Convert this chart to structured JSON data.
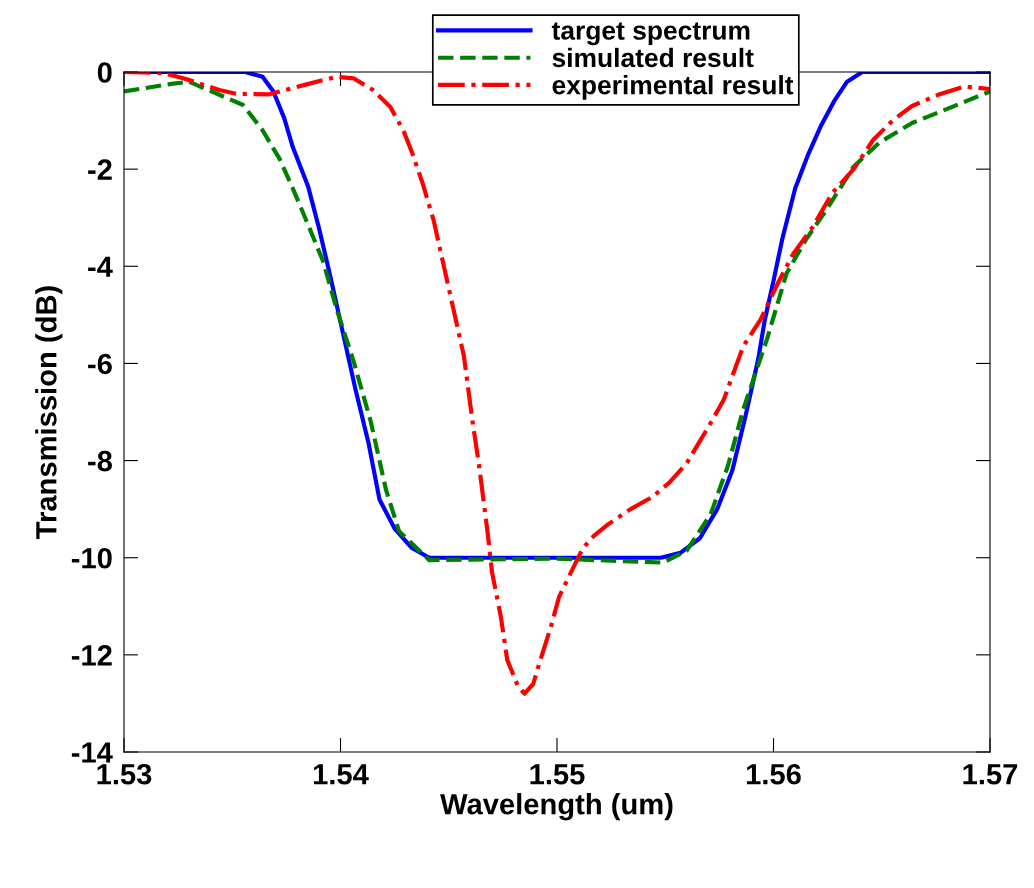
{
  "chart_data": {
    "type": "line",
    "xlabel": "Wavelength (um)",
    "ylabel": "Transmission (dB)",
    "xlim": [
      1.53,
      1.57
    ],
    "xticks": [
      1.53,
      1.54,
      1.55,
      1.56,
      1.57
    ],
    "ylim": [
      -14,
      0
    ],
    "yticks": [
      -14,
      -12,
      -10,
      -8,
      -6,
      -4,
      -2,
      0
    ],
    "grid": false,
    "legend": "top right",
    "marker": "none",
    "series": [
      {
        "name": "target spectrum",
        "color": "#0000ff",
        "line_style": "solid",
        "x": [
          1.53,
          1.5356,
          1.5364,
          1.5369,
          1.5374,
          1.5378,
          1.5385,
          1.539,
          1.5395,
          1.5401,
          1.5407,
          1.5413,
          1.5418,
          1.5425,
          1.5433,
          1.5441,
          1.5548,
          1.5557,
          1.5566,
          1.5574,
          1.5581,
          1.5587,
          1.5593,
          1.5596,
          1.56,
          1.5604,
          1.561,
          1.5616,
          1.5622,
          1.5628,
          1.5634,
          1.5641,
          1.57
        ],
        "values": [
          0,
          0,
          -0.1,
          -0.4,
          -0.95,
          -1.55,
          -2.35,
          -3.2,
          -4.15,
          -5.35,
          -6.55,
          -7.65,
          -8.8,
          -9.4,
          -9.8,
          -10,
          -10,
          -9.9,
          -9.6,
          -9.0,
          -8.2,
          -7.1,
          -5.9,
          -5.1,
          -4.3,
          -3.45,
          -2.4,
          -1.7,
          -1.1,
          -0.6,
          -0.2,
          0,
          0
        ]
      },
      {
        "name": "simulated result",
        "color": "#008000",
        "line_style": "dashed",
        "x": [
          1.53,
          1.5321,
          1.533,
          1.5355,
          1.5364,
          1.5372,
          1.5378,
          1.5386,
          1.5392,
          1.5398,
          1.5406,
          1.5414,
          1.5421,
          1.5427,
          1.5441,
          1.55,
          1.5549,
          1.556,
          1.5571,
          1.5579,
          1.5586,
          1.5597,
          1.5606,
          1.5615,
          1.5625,
          1.5637,
          1.5649,
          1.5664,
          1.5678,
          1.5689,
          1.57
        ],
        "values": [
          -0.4,
          -0.25,
          -0.2,
          -0.68,
          -1.2,
          -1.8,
          -2.4,
          -3.25,
          -3.9,
          -4.85,
          -5.95,
          -7.2,
          -8.6,
          -9.45,
          -10.05,
          -10.02,
          -10.1,
          -9.85,
          -9.1,
          -8.1,
          -6.95,
          -5.5,
          -4.15,
          -3.45,
          -2.8,
          -1.95,
          -1.45,
          -1.05,
          -0.8,
          -0.6,
          -0.4
        ]
      },
      {
        "name": "experimental result",
        "color": "#ff0000",
        "line_style": "dashdot",
        "x": [
          1.53,
          1.5318,
          1.5329,
          1.5344,
          1.5352,
          1.5367,
          1.5383,
          1.5398,
          1.5406,
          1.5415,
          1.5423,
          1.5429,
          1.5433,
          1.5438,
          1.5443,
          1.5447,
          1.5452,
          1.5457,
          1.5461,
          1.5464,
          1.5468,
          1.547,
          1.5474,
          1.5477,
          1.5482,
          1.5485,
          1.5489,
          1.5492,
          1.5497,
          1.5501,
          1.5507,
          1.5512,
          1.5517,
          1.5524,
          1.5534,
          1.5544,
          1.5552,
          1.556,
          1.5566,
          1.5572,
          1.5577,
          1.5586,
          1.5594,
          1.5602,
          1.5609,
          1.5618,
          1.5627,
          1.5637,
          1.5646,
          1.5655,
          1.5664,
          1.5676,
          1.5688,
          1.57
        ],
        "values": [
          0,
          -0.02,
          -0.15,
          -0.37,
          -0.45,
          -0.46,
          -0.27,
          -0.1,
          -0.13,
          -0.37,
          -0.72,
          -1.2,
          -1.65,
          -2.3,
          -3.05,
          -3.85,
          -4.85,
          -5.85,
          -7.2,
          -8.1,
          -9.5,
          -10.3,
          -11.2,
          -12.1,
          -12.65,
          -12.8,
          -12.6,
          -12.15,
          -11.45,
          -10.8,
          -10.25,
          -9.8,
          -9.55,
          -9.3,
          -9.0,
          -8.75,
          -8.45,
          -8.05,
          -7.6,
          -7.15,
          -6.75,
          -5.65,
          -5.1,
          -4.35,
          -3.75,
          -3.2,
          -2.5,
          -2.0,
          -1.4,
          -1.0,
          -0.7,
          -0.47,
          -0.3,
          -0.35
        ]
      }
    ]
  }
}
